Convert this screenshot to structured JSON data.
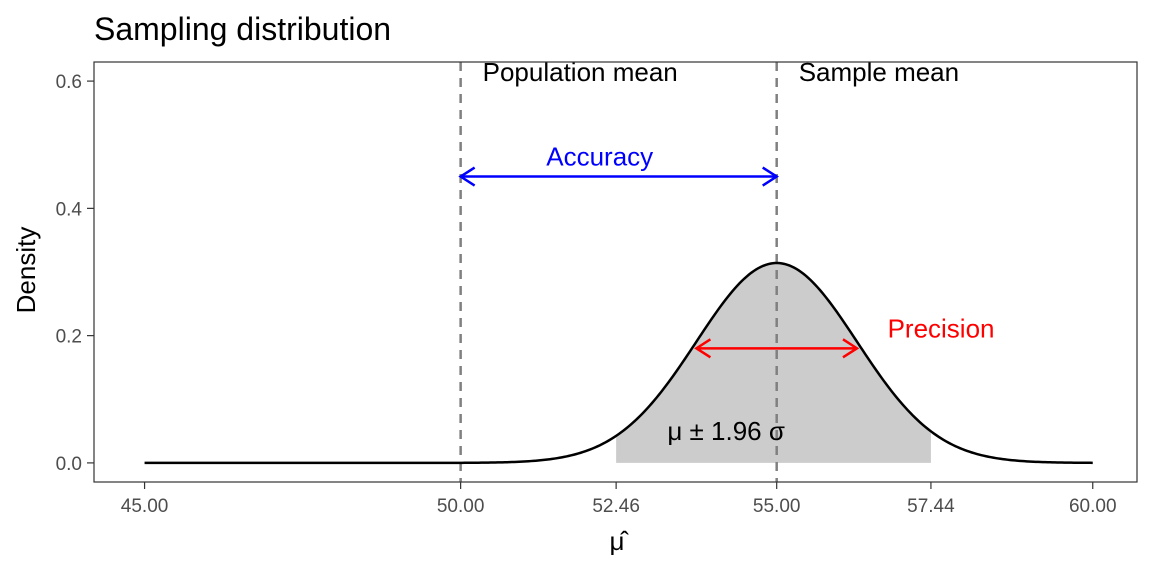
{
  "chart_data": {
    "type": "line",
    "title": "Sampling distribution",
    "xlabel": "μ̂",
    "ylabel": "Density",
    "xlim": [
      44.2,
      60.7
    ],
    "ylim": [
      -0.03,
      0.63
    ],
    "x_ticks": [
      {
        "value": 45.0,
        "label": "45.00"
      },
      {
        "value": 50.0,
        "label": "50.00"
      },
      {
        "value": 52.46,
        "label": "52.46"
      },
      {
        "value": 55.0,
        "label": "55.00"
      },
      {
        "value": 57.44,
        "label": "57.44"
      },
      {
        "value": 60.0,
        "label": "60.00"
      }
    ],
    "y_ticks": [
      {
        "value": 0.0,
        "label": "0.0"
      },
      {
        "value": 0.2,
        "label": "0.2"
      },
      {
        "value": 0.4,
        "label": "0.4"
      },
      {
        "value": 0.6,
        "label": "0.6"
      }
    ],
    "grid": false,
    "series": [
      {
        "distribution": "normal",
        "mean": 55.0,
        "sd": 1.27,
        "x_range": [
          45.0,
          60.0
        ],
        "color": "#000000"
      }
    ],
    "shaded_interval": {
      "from": 52.46,
      "to": 57.44,
      "color": "#cccccc"
    },
    "vlines": [
      {
        "x": 50.0,
        "label": "Population mean",
        "color": "#808080"
      },
      {
        "x": 55.0,
        "label": "Sample mean",
        "color": "#808080"
      }
    ],
    "annotations": [
      {
        "kind": "arrow",
        "label": "Accuracy",
        "color": "#0000ff",
        "x_from": 50.0,
        "x_to": 55.0,
        "y": 0.45,
        "label_x": 52.2,
        "label_y": 0.48
      },
      {
        "kind": "arrow",
        "label": "Precision",
        "color": "#ff0000",
        "x_from": 53.73,
        "x_to": 56.27,
        "y": 0.18,
        "label_x": 57.6,
        "label_y": 0.21
      },
      {
        "kind": "text",
        "label": "μ ± 1.96 σ",
        "color": "#000000",
        "x": 54.2,
        "y": 0.05
      }
    ]
  }
}
